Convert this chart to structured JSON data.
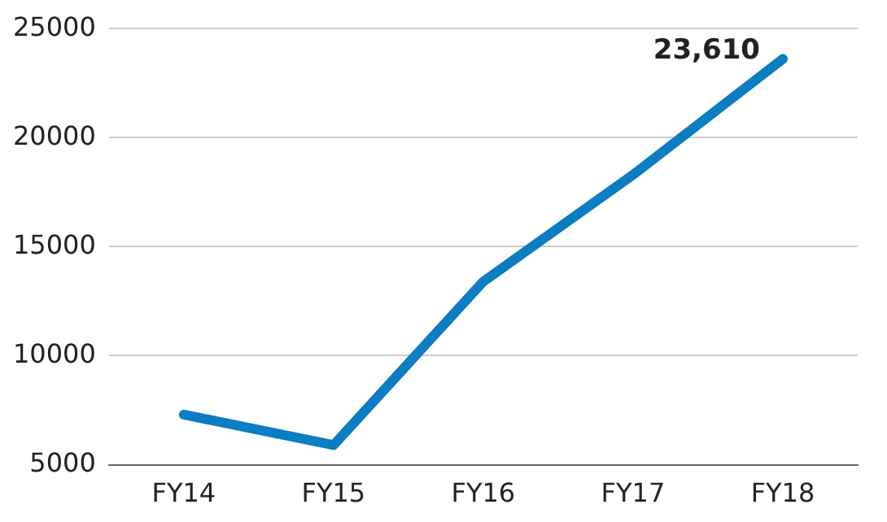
{
  "chart_data": {
    "type": "line",
    "categories": [
      "FY14",
      "FY15",
      "FY16",
      "FY17",
      "FY18"
    ],
    "series": [
      {
        "color": "#0b7dc2",
        "values": [
          7300,
          5900,
          13400,
          18300,
          23610
        ],
        "value_labels": [
          null,
          null,
          null,
          null,
          "23,610"
        ]
      }
    ],
    "ylim": [
      5000,
      25000
    ],
    "yticks": [
      5000,
      10000,
      15000,
      20000,
      25000
    ],
    "grid": "y",
    "legend": false,
    "marker": "none",
    "line_style": "solid"
  }
}
